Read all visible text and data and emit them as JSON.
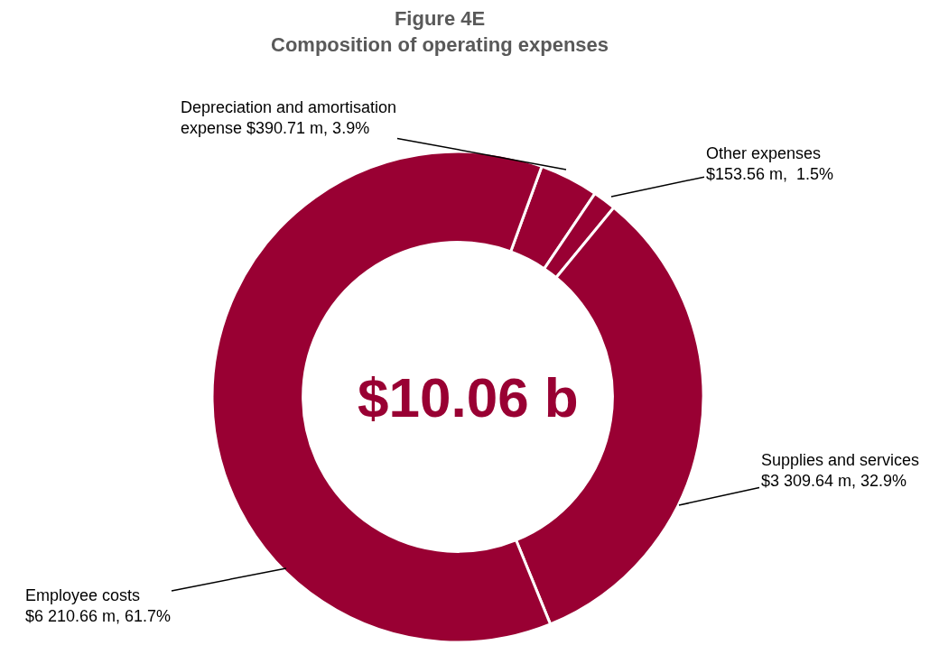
{
  "chart_data": {
    "type": "donut",
    "title": "Figure 4E",
    "subtitle": "Composition of operating expenses",
    "categories": [
      "Depreciation and amortisation expense",
      "Other expenses",
      "Supplies and services",
      "Employee costs"
    ],
    "values": [
      390.71,
      153.56,
      3309.64,
      6210.66
    ],
    "value_labels": [
      "$390.71 m, 3.9%",
      "$153.56 m,  1.5%",
      "$3 309.64 m, 32.9%",
      "$6 210.66 m, 61.7%"
    ],
    "colors": [
      "#990033",
      "#990033",
      "#990033",
      "#990033"
    ],
    "annotations": [
      "$10.06 b"
    ],
    "legend": false
  }
}
